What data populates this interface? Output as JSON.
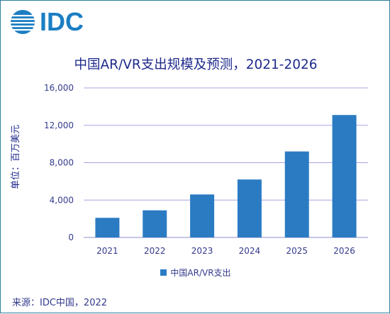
{
  "logo": {
    "text": "IDC"
  },
  "chart_data": {
    "type": "bar",
    "title": "中国AR/VR支出规模及预测，2021-2026",
    "ylabel": "单位：百万美元",
    "xlabel": "",
    "categories": [
      "2021",
      "2022",
      "2023",
      "2024",
      "2025",
      "2026"
    ],
    "series": [
      {
        "name": "中国AR/VR支出",
        "values": [
          2100,
          2900,
          4600,
          6200,
          9200,
          13100
        ]
      }
    ],
    "ylim": [
      0,
      16000
    ],
    "yticks": [
      "0",
      "4,000",
      "8,000",
      "12,000",
      "16,000"
    ],
    "grid": true,
    "legend_position": "bottom",
    "colors": {
      "bar": "#2b7bc3",
      "grid": "#a9a6e0",
      "text": "#333a8c"
    }
  },
  "source": "来源：IDC中国，2022"
}
